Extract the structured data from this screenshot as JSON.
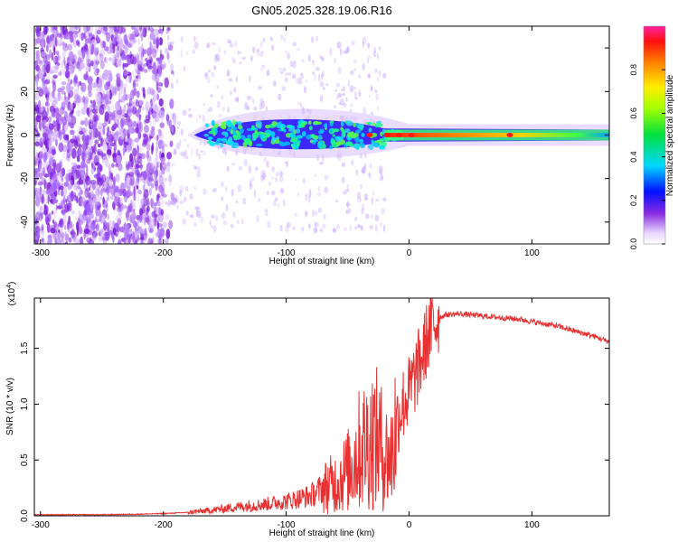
{
  "figure": {
    "title": "GN05.2025.328.19.06.R16"
  },
  "chart_data": [
    {
      "type": "heatmap",
      "name": "spectrogram",
      "xlabel": "Height of straight line (km)",
      "ylabel": "Frequency (Hz)",
      "xlim": [
        -305,
        163
      ],
      "ylim": [
        -50,
        50
      ],
      "xticks": [
        -300,
        -200,
        -100,
        0,
        100
      ],
      "yticks": [
        -40,
        -20,
        0,
        20,
        40
      ],
      "xtick_labels": [
        "-300",
        "-200",
        "-100",
        "0",
        "100"
      ],
      "ytick_labels": [
        "-40",
        "-20",
        "0",
        "20",
        "40"
      ],
      "colorbar": {
        "label": "Normalized spectral amplitude",
        "range": [
          0.0,
          1.0
        ],
        "ticks": [
          0.0,
          0.2,
          0.4,
          0.6,
          0.8
        ],
        "tick_labels": [
          "0.0",
          "0.2",
          "0.4",
          "0.6",
          "0.8"
        ]
      },
      "description_points": [
        {
          "height_km": -300,
          "band_halfwidth_hz": 50,
          "amplitude": 0.15
        },
        {
          "height_km": -200,
          "band_halfwidth_hz": 50,
          "amplitude": 0.12
        },
        {
          "height_km": -150,
          "band_halfwidth_hz": 8,
          "amplitude": 0.3
        },
        {
          "height_km": -100,
          "band_halfwidth_hz": 8,
          "amplitude": 0.35
        },
        {
          "height_km": -50,
          "band_halfwidth_hz": 6,
          "amplitude": 0.4
        },
        {
          "height_km": 0,
          "band_halfwidth_hz": 2,
          "amplitude": 0.85
        },
        {
          "height_km": 50,
          "band_halfwidth_hz": 2,
          "amplitude": 0.75
        },
        {
          "height_km": 100,
          "band_halfwidth_hz": 2,
          "amplitude": 0.7
        },
        {
          "height_km": 160,
          "band_halfwidth_hz": 2,
          "amplitude": 0.5
        }
      ]
    },
    {
      "type": "line",
      "name": "snr",
      "xlabel": "Height of straight line (km)",
      "ylabel": "SNR (10 * v/v)",
      "scale_label": "(x10",
      "scale_exp": "4",
      "scale_close": ")",
      "xlim": [
        -305,
        163
      ],
      "ylim": [
        0,
        1.95
      ],
      "xticks": [
        -300,
        -200,
        -100,
        0,
        100
      ],
      "yticks": [
        0.0,
        0.5,
        1.0,
        1.5
      ],
      "xtick_labels": [
        "-300",
        "-200",
        "-100",
        "0",
        "100"
      ],
      "ytick_labels": [
        "0.0",
        "0.5",
        "1.0",
        "1.5"
      ],
      "color": "#e83030",
      "series": [
        {
          "name": "SNR",
          "x": [
            -305,
            -280,
            -250,
            -220,
            -200,
            -180,
            -160,
            -140,
            -120,
            -100,
            -80,
            -70,
            -60,
            -50,
            -45,
            -40,
            -35,
            -30,
            -25,
            -20,
            -15,
            -10,
            -5,
            0,
            5,
            10,
            15,
            20,
            25,
            30,
            40,
            50,
            60,
            70,
            80,
            90,
            100,
            110,
            120,
            130,
            140,
            150,
            160,
            163
          ],
          "y": [
            0.01,
            0.01,
            0.01,
            0.015,
            0.02,
            0.03,
            0.05,
            0.08,
            0.1,
            0.13,
            0.18,
            0.25,
            0.3,
            0.4,
            0.5,
            0.6,
            0.65,
            0.7,
            0.68,
            0.55,
            0.5,
            0.85,
            1.0,
            1.1,
            1.25,
            1.4,
            1.6,
            1.72,
            1.78,
            1.8,
            1.81,
            1.8,
            1.79,
            1.78,
            1.77,
            1.76,
            1.74,
            1.72,
            1.7,
            1.67,
            1.64,
            1.61,
            1.57,
            1.56
          ]
        }
      ]
    }
  ]
}
